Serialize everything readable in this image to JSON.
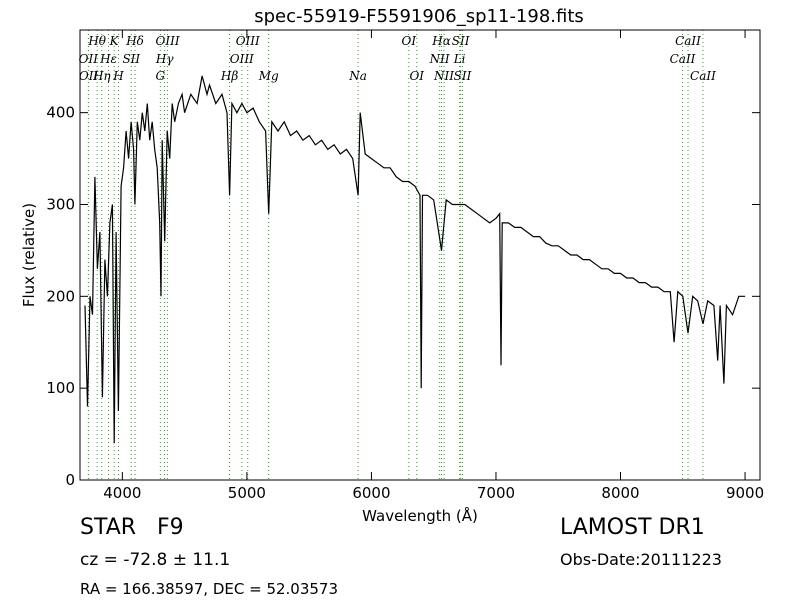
{
  "chart_data": {
    "type": "line",
    "title": "spec-55919-F5591906_sp11-198.fits",
    "x_label": "Wavelength (Å)",
    "y_label": "Flux (relative)",
    "xlim": [
      3660,
      9120
    ],
    "ylim": [
      0,
      490
    ],
    "xticks": [
      4000,
      5000,
      6000,
      7000,
      8000,
      9000
    ],
    "yticks": [
      0,
      100,
      200,
      300,
      400
    ],
    "color": "#000000",
    "line_color": "#2ca02c",
    "lines": [
      {
        "label": "Hθ",
        "x": 3798
      },
      {
        "label": "K",
        "x": 3934
      },
      {
        "label": "Hδ",
        "x": 4102
      },
      {
        "label": "OIII",
        "x": 4363
      },
      {
        "label": "OIII",
        "x": 5007
      },
      {
        "label": "OI",
        "x": 6300
      },
      {
        "label": "Hα",
        "x": 6563
      },
      {
        "label": "SII",
        "x": 6716
      },
      {
        "label": "CaII",
        "x": 8542
      },
      {
        "label": "OII",
        "x": 3727
      },
      {
        "label": "Hε",
        "x": 3889
      },
      {
        "label": "SII",
        "x": 4072
      },
      {
        "label": "Hγ",
        "x": 4340
      },
      {
        "label": "OIII",
        "x": 4959
      },
      {
        "label": "NII",
        "x": 6548
      },
      {
        "label": "Li",
        "x": 6708
      },
      {
        "label": "CaII",
        "x": 8498
      },
      {
        "label": "OII",
        "x": 3729
      },
      {
        "label": "Hη",
        "x": 3835
      },
      {
        "label": "H",
        "x": 3969
      },
      {
        "label": "G",
        "x": 4305
      },
      {
        "label": "Hβ",
        "x": 4861
      },
      {
        "label": "Mg",
        "x": 5175
      },
      {
        "label": "Na",
        "x": 5893
      },
      {
        "label": "OI",
        "x": 6364
      },
      {
        "label": "NII",
        "x": 6583
      },
      {
        "label": "SII",
        "x": 6731
      },
      {
        "label": "CaII",
        "x": 8662
      }
    ],
    "x": [
      3700,
      3720,
      3740,
      3760,
      3780,
      3800,
      3820,
      3840,
      3860,
      3880,
      3900,
      3920,
      3935,
      3950,
      3968,
      3990,
      4010,
      4030,
      4050,
      4070,
      4090,
      4101,
      4120,
      4140,
      4160,
      4180,
      4200,
      4220,
      4240,
      4260,
      4280,
      4300,
      4310,
      4320,
      4340,
      4360,
      4380,
      4400,
      4420,
      4450,
      4480,
      4500,
      4550,
      4600,
      4640,
      4680,
      4700,
      4750,
      4800,
      4840,
      4861,
      4880,
      4920,
      4960,
      5000,
      5050,
      5100,
      5150,
      5175,
      5200,
      5250,
      5300,
      5350,
      5400,
      5450,
      5500,
      5550,
      5600,
      5650,
      5700,
      5750,
      5800,
      5850,
      5893,
      5910,
      5950,
      6000,
      6050,
      6100,
      6150,
      6200,
      6250,
      6300,
      6350,
      6390,
      6400,
      6410,
      6450,
      6500,
      6563,
      6600,
      6650,
      6700,
      6750,
      6800,
      6850,
      6900,
      6950,
      7000,
      7030,
      7040,
      7050,
      7100,
      7150,
      7200,
      7250,
      7300,
      7350,
      7400,
      7450,
      7500,
      7550,
      7600,
      7650,
      7700,
      7750,
      7800,
      7850,
      7900,
      7950,
      8000,
      8050,
      8100,
      8150,
      8200,
      8250,
      8300,
      8350,
      8400,
      8430,
      8460,
      8500,
      8542,
      8580,
      8620,
      8662,
      8700,
      8750,
      8780,
      8800,
      8830,
      8850,
      8900,
      8950,
      9000
    ],
    "values": [
      190,
      80,
      200,
      180,
      330,
      230,
      270,
      90,
      240,
      200,
      280,
      300,
      40,
      270,
      75,
      320,
      340,
      380,
      350,
      390,
      360,
      300,
      390,
      370,
      400,
      380,
      410,
      370,
      390,
      360,
      340,
      280,
      200,
      370,
      260,
      380,
      350,
      410,
      390,
      410,
      420,
      400,
      420,
      410,
      440,
      420,
      430,
      410,
      420,
      400,
      310,
      410,
      400,
      410,
      400,
      405,
      390,
      380,
      290,
      390,
      380,
      390,
      375,
      380,
      370,
      375,
      365,
      370,
      360,
      365,
      355,
      360,
      350,
      310,
      400,
      355,
      350,
      345,
      340,
      340,
      330,
      325,
      325,
      320,
      310,
      100,
      310,
      310,
      305,
      250,
      305,
      300,
      300,
      300,
      295,
      290,
      285,
      280,
      285,
      290,
      125,
      280,
      280,
      275,
      275,
      270,
      265,
      265,
      258,
      255,
      255,
      250,
      245,
      245,
      240,
      240,
      235,
      230,
      230,
      225,
      225,
      220,
      220,
      215,
      215,
      210,
      210,
      205,
      205,
      150,
      205,
      200,
      160,
      200,
      195,
      170,
      195,
      190,
      130,
      190,
      105,
      190,
      180,
      200,
      200
    ],
    "star": "STAR   F9",
    "cz": "cz = -72.8 ± 11.1",
    "coords": "RA = 166.38597, DEC = 52.03573",
    "survey": "LAMOST DR1",
    "obs_date": "Obs-Date:20111223"
  }
}
